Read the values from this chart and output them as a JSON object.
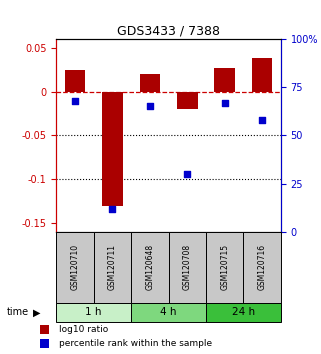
{
  "title": "GDS3433 / 7388",
  "samples": [
    "GSM120710",
    "GSM120711",
    "GSM120648",
    "GSM120708",
    "GSM120715",
    "GSM120716"
  ],
  "groups": [
    {
      "label": "1 h",
      "indices": [
        0,
        1
      ]
    },
    {
      "label": "4 h",
      "indices": [
        2,
        3
      ]
    },
    {
      "label": "24 h",
      "indices": [
        4,
        5
      ]
    }
  ],
  "log10_ratio": [
    0.025,
    -0.13,
    0.02,
    -0.02,
    0.027,
    0.038
  ],
  "percentile_rank": [
    68,
    12,
    65,
    30,
    67,
    58
  ],
  "bar_color": "#aa0000",
  "dot_color": "#0000cc",
  "ylim_left": [
    -0.16,
    0.06
  ],
  "ylim_right": [
    0,
    100
  ],
  "yticks_left": [
    0.05,
    0.0,
    -0.05,
    -0.1,
    -0.15
  ],
  "yticks_right": [
    100,
    75,
    50,
    25,
    0
  ],
  "hline_color": "#cc0000",
  "dotline_color": "#000000",
  "ylabel_left_color": "#cc0000",
  "ylabel_right_color": "#0000cc",
  "bar_width": 0.55,
  "legend_labels": [
    "log10 ratio",
    "percentile rank within the sample"
  ],
  "legend_colors": [
    "#aa0000",
    "#0000cc"
  ],
  "group_colors": [
    "#c8f0c8",
    "#7ed87e",
    "#3abf3a"
  ],
  "sample_box_color": "#c8c8c8"
}
